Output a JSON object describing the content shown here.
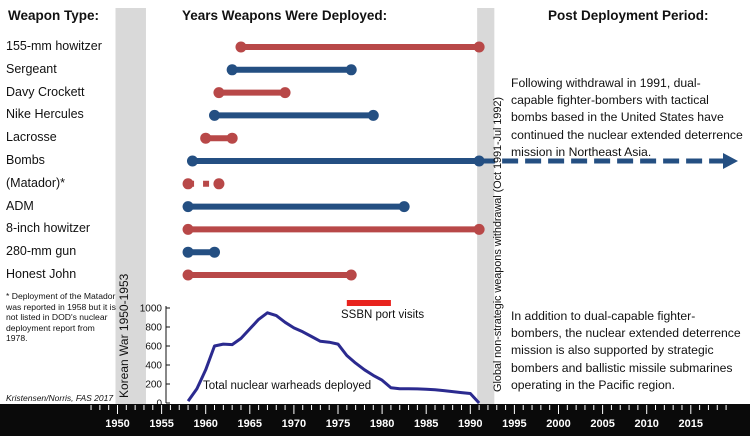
{
  "headers": {
    "weapon_type": "Weapon Type:",
    "years_deployed": "Years Weapons Were Deployed:",
    "post_deployment": "Post Deployment Period:"
  },
  "colors": {
    "red": "#b84848",
    "blue": "#244f82",
    "navy": "#2b2a8f",
    "ssbn_bar": "#e8231e",
    "band_grey": "#d9d9d9",
    "timeline_bg": "#0a0a0a"
  },
  "annotations": {
    "korean_war": "Korean War 1950-1953",
    "global_withdrawal": "Global non-strategic weapons withdrawal (Oct 1991-Jul 1992)",
    "ssbn_port_visits": "SSBN port visits",
    "total_warheads": "Total nuclear warheads deployed",
    "matador_note": "* Deployment of the Matador was reported in 1958 but it is not listed in DOD's nuclear deployment report from 1978.",
    "credit": "Kristensen/Norris, FAS 2017",
    "para_top": "Following withdrawal in 1991, dual-capable fighter-bombers with tactical bombs based in the United States have continued the nuclear extended deterrence mission in Northeast Asia.",
    "para_bottom": "In addition to dual-capable fighter-bombers, the nuclear extended deterrence mission is also supported by strategic bombers and ballistic missile submarines operating in the Pacific region."
  },
  "chart_data": [
    {
      "type": "timeline",
      "x_axis": {
        "range": [
          1947,
          2019
        ],
        "ticks": [
          1950,
          1955,
          1960,
          1965,
          1970,
          1975,
          1980,
          1985,
          1990,
          1995,
          2000,
          2005,
          2010,
          2015
        ]
      },
      "shaded_periods": [
        {
          "label": "Korean War 1950-1953",
          "start": 1950,
          "end": 1953
        },
        {
          "label": "Global non-strategic weapons withdrawal (Oct 1991-Jul 1992)",
          "start": 1991,
          "end": 1992.5
        }
      ],
      "deployments": [
        {
          "weapon": "155-mm howitzer",
          "start": 1964,
          "end": 1991,
          "color": "red"
        },
        {
          "weapon": "Sergeant",
          "start": 1963,
          "end": 1976.5,
          "color": "blue"
        },
        {
          "weapon": "Davy Crockett",
          "start": 1961.5,
          "end": 1969,
          "color": "red"
        },
        {
          "weapon": "Nike Hercules",
          "start": 1961,
          "end": 1979,
          "color": "blue"
        },
        {
          "weapon": "Lacrosse",
          "start": 1960,
          "end": 1963,
          "color": "red"
        },
        {
          "weapon": "Bombs",
          "start": 1958.5,
          "end": 1991,
          "color": "blue",
          "continues": true
        },
        {
          "weapon": "(Matador)*",
          "start": 1958,
          "end": 1961.5,
          "color": "red",
          "dashed": true
        },
        {
          "weapon": "ADM",
          "start": 1958,
          "end": 1982.5,
          "color": "blue"
        },
        {
          "weapon": "8-inch howitzer",
          "start": 1958,
          "end": 1991,
          "color": "red"
        },
        {
          "weapon": "280-mm gun",
          "start": 1958,
          "end": 1961,
          "color": "blue"
        },
        {
          "weapon": "Honest John",
          "start": 1958,
          "end": 1976.5,
          "color": "red"
        }
      ],
      "ssbn_port_visits": {
        "start": 1976,
        "end": 1981
      }
    },
    {
      "type": "line",
      "title": "Total nuclear warheads deployed",
      "ylim": [
        0,
        1000
      ],
      "yticks": [
        0,
        200,
        400,
        600,
        800,
        1000
      ],
      "series": [
        {
          "x": [
            1958,
            1959,
            1960,
            1961,
            1962,
            1963,
            1964,
            1965,
            1966,
            1967,
            1968,
            1969,
            1970,
            1971,
            1972,
            1973,
            1974,
            1975,
            1976,
            1977,
            1978,
            1979,
            1980,
            1981,
            1982,
            1983,
            1984,
            1985,
            1986,
            1987,
            1988,
            1989,
            1990,
            1991
          ],
          "values": [
            20,
            150,
            350,
            600,
            620,
            615,
            680,
            780,
            880,
            950,
            920,
            850,
            790,
            750,
            700,
            650,
            640,
            620,
            500,
            420,
            350,
            290,
            240,
            160,
            150,
            150,
            148,
            145,
            140,
            130,
            120,
            110,
            100,
            0
          ]
        }
      ]
    }
  ]
}
